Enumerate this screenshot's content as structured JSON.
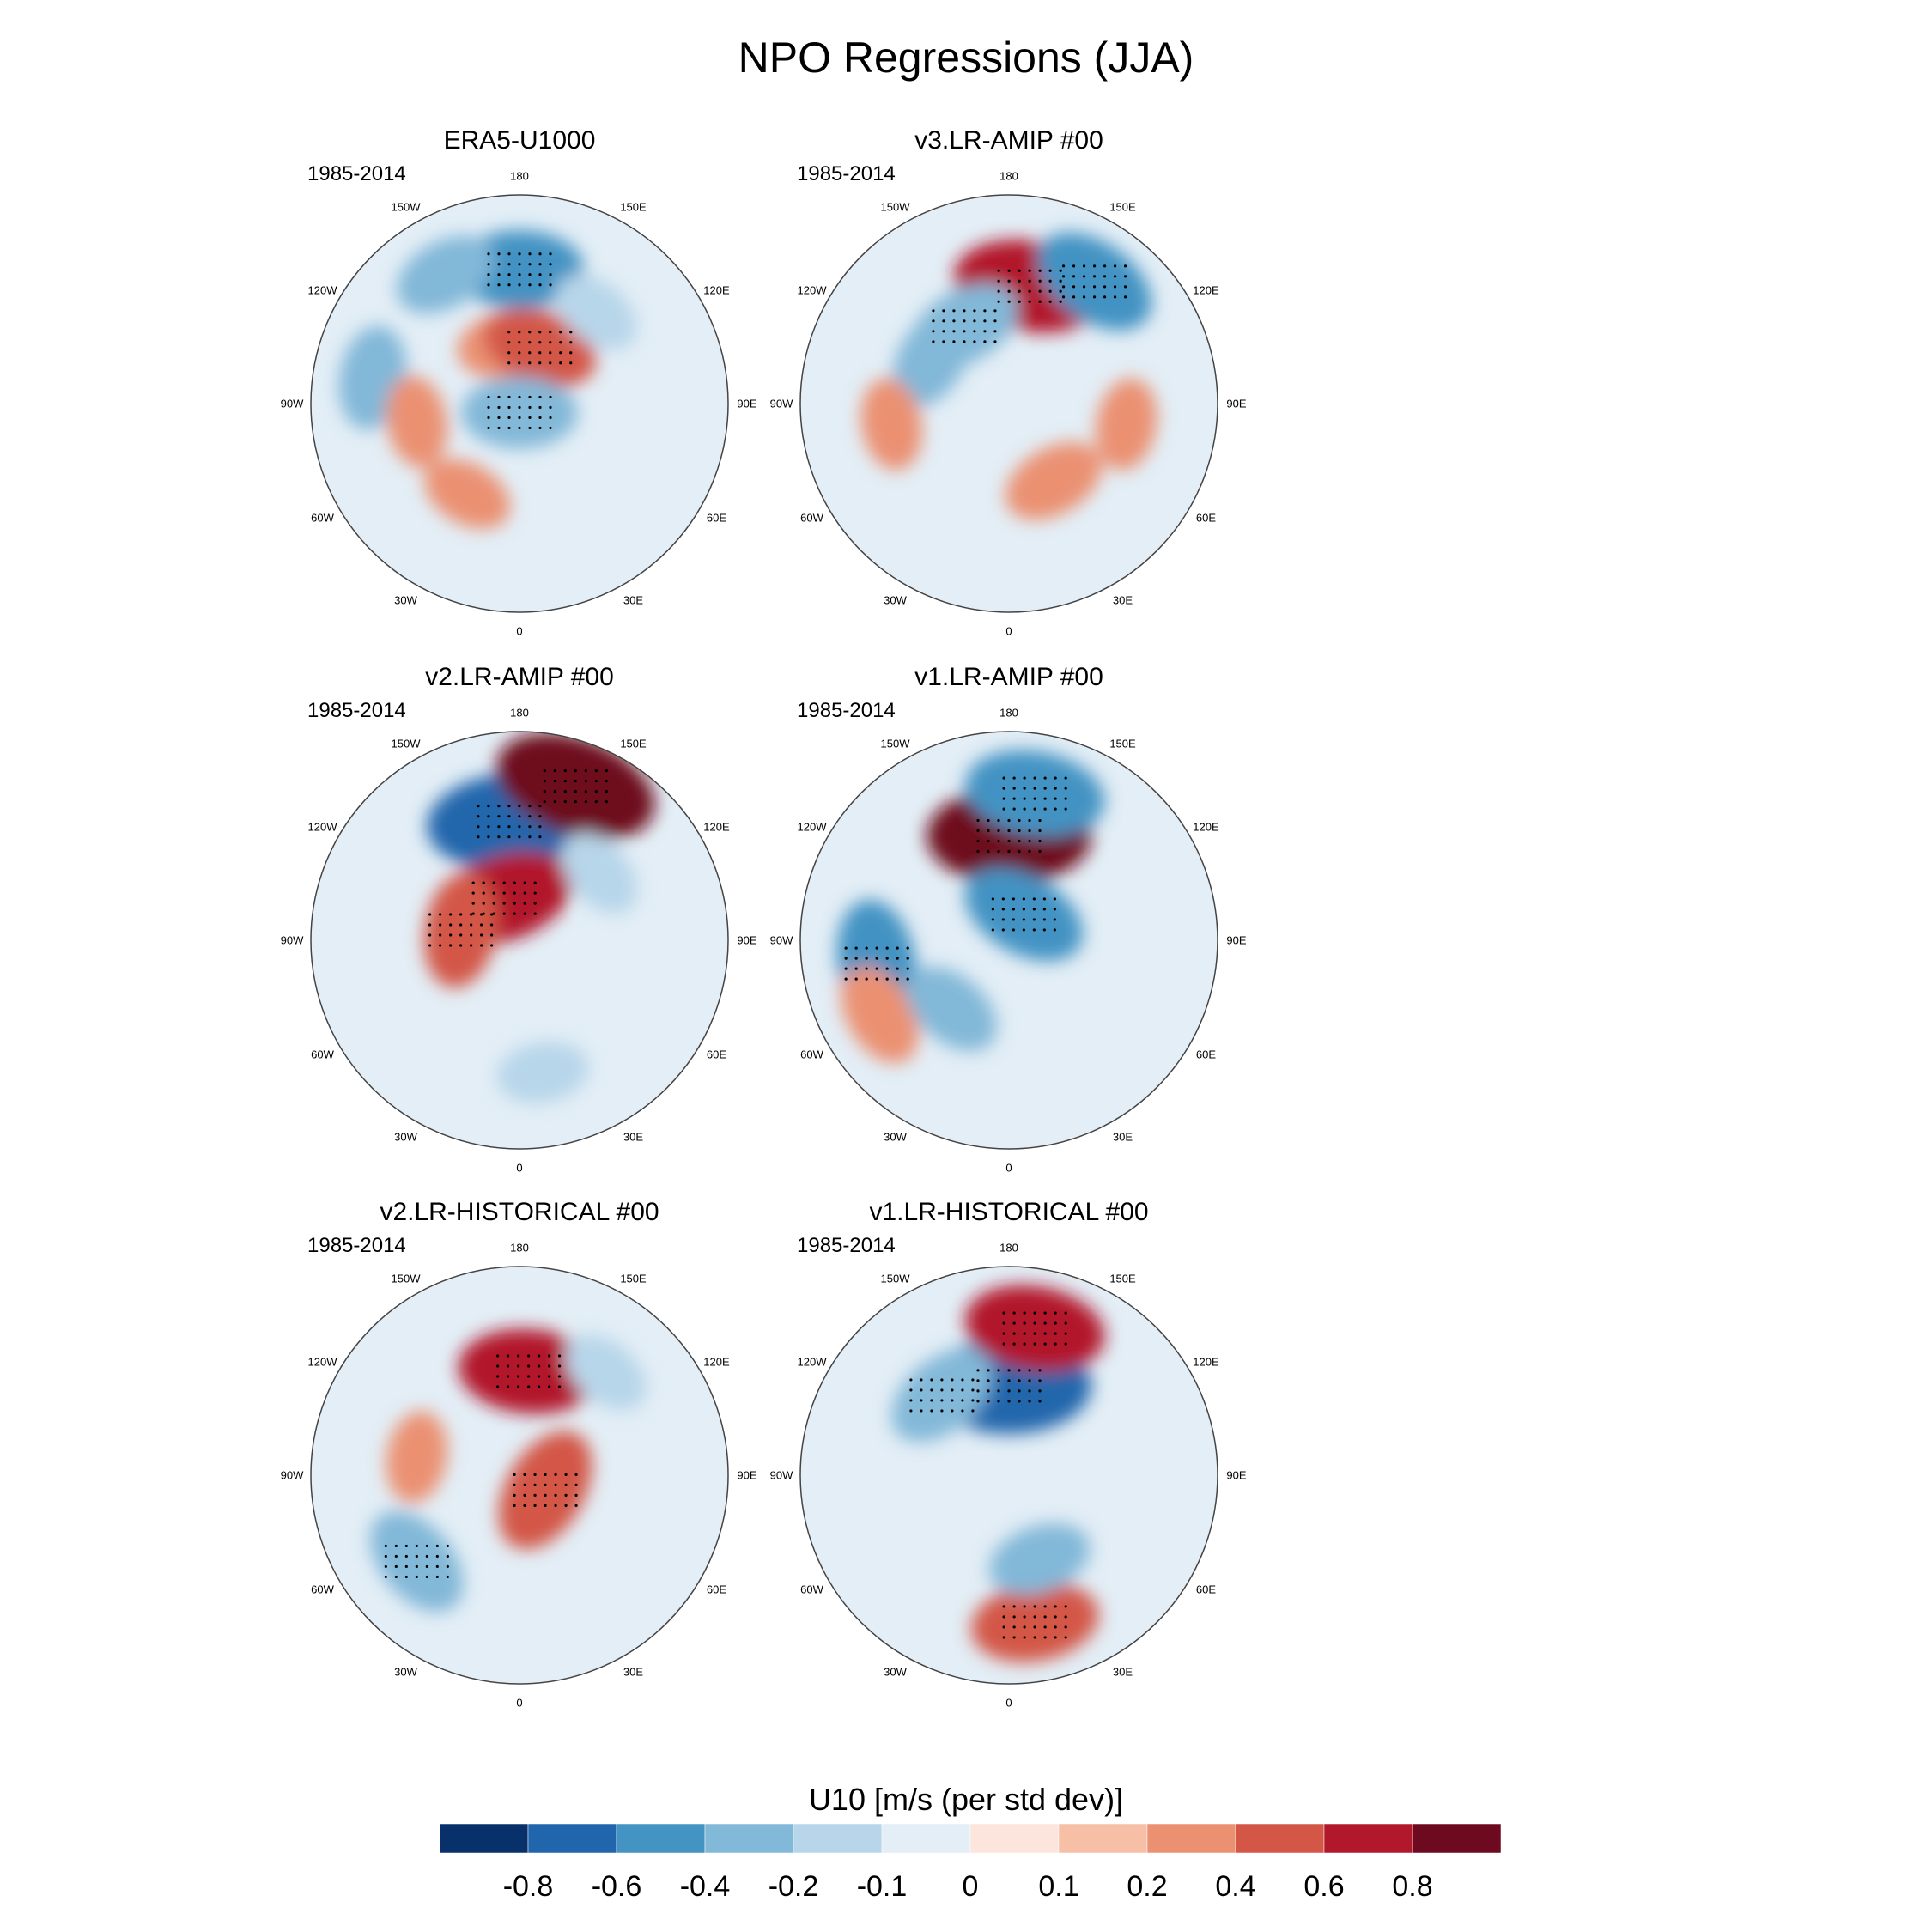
{
  "figure": {
    "title": "NPO Regressions (JJA)",
    "period": "1985-2014",
    "lon_labels": [
      "180",
      "150E",
      "120E",
      "90E",
      "60E",
      "30E",
      "0",
      "30W",
      "60W",
      "90W",
      "120W",
      "150W"
    ]
  },
  "panels": [
    {
      "title": "ERA5-U1000",
      "period": "1985-2014"
    },
    {
      "title": "v3.LR-AMIP  #00",
      "period": "1985-2014"
    },
    {
      "title": "v2.LR-AMIP  #00",
      "period": "1985-2014"
    },
    {
      "title": "v1.LR-AMIP  #00",
      "period": "1985-2014"
    },
    {
      "title": "v2.LR-HISTORICAL  #00",
      "period": "1985-2014"
    },
    {
      "title": "v1.LR-HISTORICAL  #00",
      "period": "1985-2014"
    }
  ],
  "colorbar": {
    "title": "U10 [m/s (per std dev)]",
    "labels": [
      "-0.8",
      "-0.6",
      "-0.4",
      "-0.2",
      "-0.1",
      "0",
      "0.1",
      "0.2",
      "0.4",
      "0.6",
      "0.8"
    ],
    "colors": [
      "#08306b",
      "#2166ac",
      "#4393c3",
      "#82b8d8",
      "#b7d6ea",
      "#e3eef6",
      "#fbe5dc",
      "#f6bfa6",
      "#eb9172",
      "#d35647",
      "#b2182b",
      "#6e0a1f"
    ]
  },
  "chart_data": {
    "type": "heatmap",
    "title": "NPO Regressions (JJA)",
    "variable": "U10 [m/s (per std dev)]",
    "projection": "north polar stereographic",
    "levels": [
      -0.8,
      -0.6,
      -0.4,
      -0.2,
      -0.1,
      0,
      0.1,
      0.2,
      0.4,
      0.6,
      0.8
    ],
    "panels": [
      {
        "name": "ERA5-U1000",
        "period": "1985-2014",
        "features": [
          {
            "lon": 180,
            "lat": 45,
            "value": -0.5
          },
          {
            "lon": -150,
            "lat": 40,
            "value": -0.3
          },
          {
            "lon": -170,
            "lat": 70,
            "value": 0.3
          },
          {
            "lon": 160,
            "lat": 70,
            "value": 0.4
          },
          {
            "lon": 0,
            "lat": 87,
            "value": -0.4
          },
          {
            "lon": -100,
            "lat": 40,
            "value": -0.3
          },
          {
            "lon": -80,
            "lat": 55,
            "value": 0.2
          },
          {
            "lon": -30,
            "lat": 55,
            "value": 0.2
          },
          {
            "lon": 140,
            "lat": 50,
            "value": -0.2
          }
        ]
      },
      {
        "name": "v3.LR-AMIP  #00",
        "period": "1985-2014",
        "features": [
          {
            "lon": 170,
            "lat": 50,
            "value": 0.7
          },
          {
            "lon": 145,
            "lat": 40,
            "value": -0.5
          },
          {
            "lon": -150,
            "lat": 60,
            "value": -0.4
          },
          {
            "lon": -120,
            "lat": 60,
            "value": -0.3
          },
          {
            "lon": 30,
            "lat": 60,
            "value": 0.3
          },
          {
            "lon": 80,
            "lat": 50,
            "value": 0.2
          },
          {
            "lon": -80,
            "lat": 50,
            "value": 0.2
          }
        ]
      },
      {
        "name": "v2.LR-AMIP  #00",
        "period": "1985-2014",
        "features": [
          {
            "lon": -175,
            "lat": 50,
            "value": -0.8
          },
          {
            "lon": 160,
            "lat": 35,
            "value": 0.8
          },
          {
            "lon": -160,
            "lat": 75,
            "value": 0.6
          },
          {
            "lon": -100,
            "lat": 70,
            "value": 0.4
          },
          {
            "lon": 130,
            "lat": 55,
            "value": -0.2
          },
          {
            "lon": 10,
            "lat": 45,
            "value": -0.2
          }
        ]
      },
      {
        "name": "v1.LR-AMIP  #00",
        "period": "1985-2014",
        "features": [
          {
            "lon": 180,
            "lat": 55,
            "value": 0.8
          },
          {
            "lon": 170,
            "lat": 40,
            "value": -0.6
          },
          {
            "lon": -80,
            "lat": 45,
            "value": -0.5
          },
          {
            "lon": -60,
            "lat": 40,
            "value": 0.3
          },
          {
            "lon": -40,
            "lat": 60,
            "value": -0.3
          },
          {
            "lon": 150,
            "lat": 80,
            "value": -0.5
          }
        ]
      },
      {
        "name": "v2.LR-HISTORICAL  #00",
        "period": "1985-2014",
        "features": [
          {
            "lon": 175,
            "lat": 55,
            "value": 0.6
          },
          {
            "lon": 60,
            "lat": 80,
            "value": 0.5
          },
          {
            "lon": -50,
            "lat": 45,
            "value": -0.4
          },
          {
            "lon": 140,
            "lat": 45,
            "value": -0.2
          },
          {
            "lon": -100,
            "lat": 55,
            "value": 0.2
          }
        ]
      },
      {
        "name": "v1.LR-HISTORICAL  #00",
        "period": "1985-2014",
        "features": [
          {
            "lon": 180,
            "lat": 60,
            "value": -0.8
          },
          {
            "lon": 170,
            "lat": 40,
            "value": 0.6
          },
          {
            "lon": -140,
            "lat": 55,
            "value": -0.4
          },
          {
            "lon": 10,
            "lat": 40,
            "value": 0.5
          },
          {
            "lon": 20,
            "lat": 60,
            "value": -0.3
          }
        ]
      }
    ]
  }
}
